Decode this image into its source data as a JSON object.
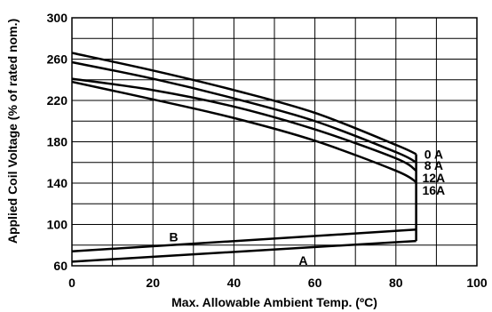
{
  "chart_data": {
    "type": "line",
    "xlabel": "Max. Allowable Ambient Temp. (ºC)",
    "ylabel": "Applied Coil Voltage (% of rated nom.)",
    "xlim": [
      0,
      100
    ],
    "ylim": [
      60,
      300
    ],
    "x_ticks": [
      "0",
      "20",
      "40",
      "60",
      "80",
      "100"
    ],
    "y_ticks": [
      "60",
      "100",
      "140",
      "180",
      "220",
      "260",
      "300"
    ],
    "grid": true,
    "series": [
      {
        "name": "0 A",
        "x": [
          0,
          20,
          40,
          60,
          80,
          85
        ],
        "y": [
          266,
          249,
          230,
          208,
          177,
          168
        ]
      },
      {
        "name": "8 A",
        "x": [
          0,
          20,
          40,
          60,
          80,
          85
        ],
        "y": [
          257,
          241,
          222,
          200,
          170,
          160
        ]
      },
      {
        "name": "12A",
        "x": [
          0,
          20,
          40,
          60,
          80,
          85
        ],
        "y": [
          241,
          230,
          214,
          192,
          164,
          152
        ]
      },
      {
        "name": "16A",
        "x": [
          0,
          20,
          40,
          60,
          80,
          85
        ],
        "y": [
          238,
          221,
          203,
          181,
          152,
          141
        ]
      },
      {
        "name": "B",
        "x": [
          0,
          85
        ],
        "y": [
          74,
          95
        ]
      },
      {
        "name": "A",
        "x": [
          0,
          85
        ],
        "y": [
          64,
          84
        ]
      }
    ],
    "limit_line": {
      "x": 85,
      "y": [
        84,
        168
      ]
    },
    "labels": [
      {
        "text": "0 A",
        "x": 87,
        "y": 168
      },
      {
        "text": "8 A",
        "x": 87,
        "y": 157
      },
      {
        "text": "12A",
        "x": 86.5,
        "y": 145
      },
      {
        "text": "16A",
        "x": 86.5,
        "y": 133
      },
      {
        "text": "B",
        "x": 24,
        "y": 88
      },
      {
        "text": "A",
        "x": 56,
        "y": 65
      }
    ]
  }
}
